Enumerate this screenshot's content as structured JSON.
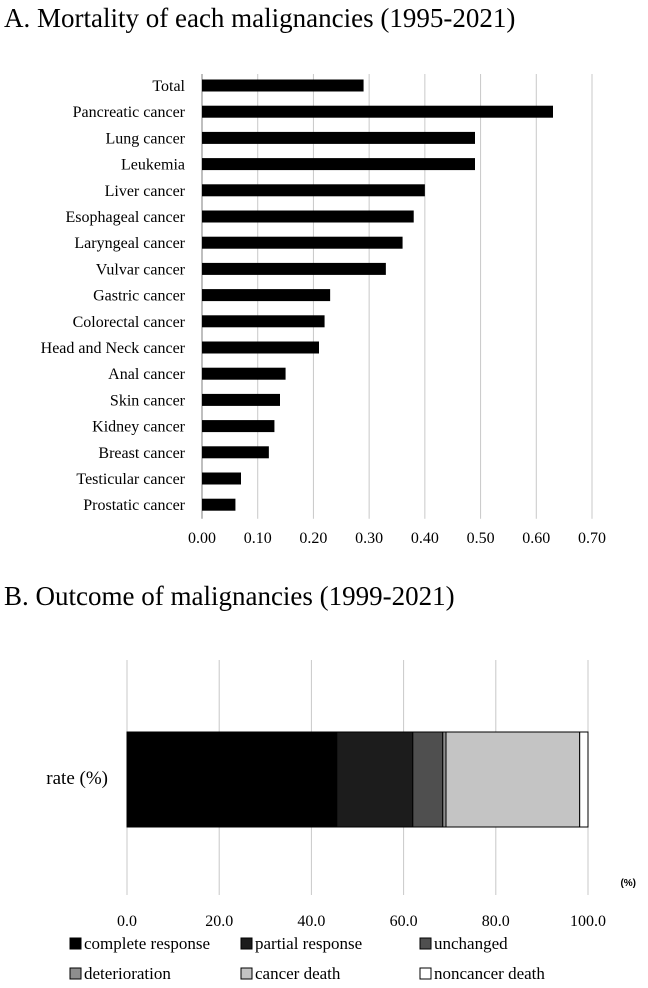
{
  "chart_data": [
    {
      "type": "bar",
      "orientation": "horizontal",
      "title": "A. Mortality of each malignancies (1995-2021)",
      "categories": [
        "Total",
        "Pancreatic cancer",
        "Lung cancer",
        "Leukemia",
        "Liver cancer",
        "Esophageal cancer",
        "Laryngeal cancer",
        "Vulvar cancer",
        "Gastric cancer",
        "Colorectal cancer",
        "Head and Neck cancer",
        "Anal cancer",
        "Skin cancer",
        "Kidney cancer",
        "Breast cancer",
        "Testicular cancer",
        "Prostatic cancer"
      ],
      "values": [
        0.29,
        0.63,
        0.49,
        0.49,
        0.4,
        0.38,
        0.36,
        0.33,
        0.23,
        0.22,
        0.21,
        0.15,
        0.14,
        0.13,
        0.12,
        0.07,
        0.06
      ],
      "xlim": [
        0,
        0.7
      ],
      "xticks": [
        "0.00",
        "0.10",
        "0.20",
        "0.30",
        "0.40",
        "0.50",
        "0.60",
        "0.70"
      ],
      "grid": true,
      "bar_color": "#000000"
    },
    {
      "type": "bar",
      "orientation": "horizontal",
      "stacked": true,
      "title": "B. Outcome of malignancies (1999-2021)",
      "categories": [
        "rate (%)"
      ],
      "unit_label": "(%)",
      "xlim": [
        0,
        100
      ],
      "xticks": [
        "0.0",
        "20.0",
        "40.0",
        "60.0",
        "80.0",
        "100.0"
      ],
      "grid": true,
      "legend_position": "bottom",
      "series": [
        {
          "name": "complete response",
          "values": [
            45.5
          ],
          "color": "#000000"
        },
        {
          "name": "partial response",
          "values": [
            16.5
          ],
          "color": "#1c1c1c"
        },
        {
          "name": "unchanged",
          "values": [
            6.5
          ],
          "color": "#4f4f4f"
        },
        {
          "name": "deterioration",
          "values": [
            0.7
          ],
          "color": "#8e8e8e"
        },
        {
          "name": "cancer death",
          "values": [
            29.0
          ],
          "color": "#c4c4c4"
        },
        {
          "name": "noncancer death",
          "values": [
            1.8
          ],
          "color": "#ffffff"
        }
      ]
    }
  ]
}
